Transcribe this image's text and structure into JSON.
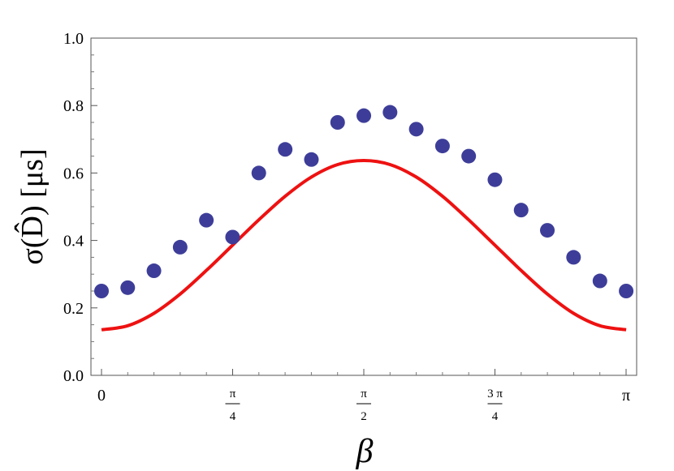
{
  "chart_data": {
    "type": "scatter",
    "xlabel": "β",
    "ylabel": "σ(D̂) [μs]",
    "xlim": [
      0,
      3.14159265
    ],
    "ylim": [
      0,
      1.0
    ],
    "grid": false,
    "x_ticks": [
      {
        "value": 0,
        "label": "0"
      },
      {
        "value": 0.785398,
        "num": "π",
        "den": "4"
      },
      {
        "value": 1.570796,
        "num": "π",
        "den": "2"
      },
      {
        "value": 2.356194,
        "num": "3 π",
        "den": "4"
      },
      {
        "value": 3.141593,
        "label": "π"
      }
    ],
    "y_ticks": [
      {
        "value": 0.0,
        "label": "0.0"
      },
      {
        "value": 0.2,
        "label": "0.2"
      },
      {
        "value": 0.4,
        "label": "0.4"
      },
      {
        "value": 0.6,
        "label": "0.6"
      },
      {
        "value": 0.8,
        "label": "0.8"
      },
      {
        "value": 1.0,
        "label": "1.0"
      }
    ],
    "series": [
      {
        "kind": "points",
        "color": "#3d3d99",
        "x": [
          0,
          0.157,
          0.314,
          0.471,
          0.628,
          0.785,
          0.942,
          1.1,
          1.257,
          1.414,
          1.571,
          1.728,
          1.885,
          2.042,
          2.199,
          2.356,
          2.513,
          2.67,
          2.827,
          2.985,
          3.142
        ],
        "y": [
          0.25,
          0.26,
          0.31,
          0.38,
          0.46,
          0.41,
          0.6,
          0.67,
          0.64,
          0.75,
          0.77,
          0.78,
          0.73,
          0.68,
          0.65,
          0.58,
          0.49,
          0.43,
          0.35,
          0.28,
          0.25
        ]
      },
      {
        "kind": "curve",
        "color": "#ee1111",
        "x": [
          0,
          0.157,
          0.314,
          0.471,
          0.628,
          0.785,
          0.942,
          1.1,
          1.257,
          1.414,
          1.571,
          1.728,
          1.885,
          2.042,
          2.199,
          2.356,
          2.513,
          2.67,
          2.827,
          2.985,
          3.142
        ],
        "y": [
          0.135,
          0.147,
          0.184,
          0.241,
          0.311,
          0.386,
          0.461,
          0.531,
          0.588,
          0.625,
          0.637,
          0.625,
          0.588,
          0.531,
          0.461,
          0.386,
          0.311,
          0.241,
          0.184,
          0.147,
          0.135
        ]
      }
    ]
  }
}
